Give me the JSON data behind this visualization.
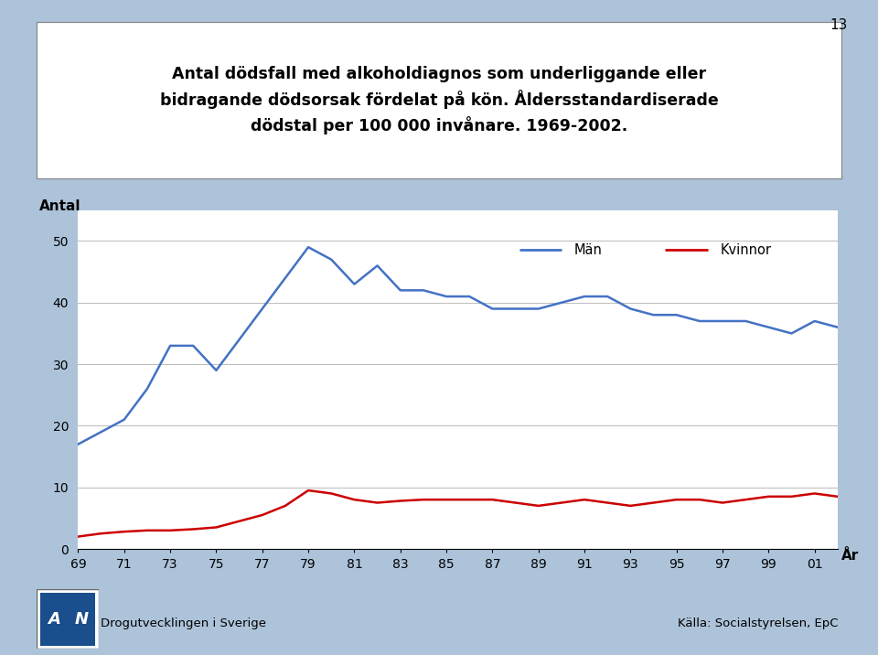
{
  "title_line1": "Antal dödsfall med alkoholdiagnos som underliggande eller",
  "title_line2": "bidragande dödsorsak fördelat på kön. Åldersstandardiserade",
  "title_line3": "dödstal per 100 000 invånare. 1969-2002.",
  "ylabel": "Antal",
  "xlabel": "År",
  "years": [
    1969,
    1970,
    1971,
    1972,
    1973,
    1974,
    1975,
    1976,
    1977,
    1978,
    1979,
    1980,
    1981,
    1982,
    1983,
    1984,
    1985,
    1986,
    1987,
    1988,
    1989,
    1990,
    1991,
    1992,
    1993,
    1994,
    1995,
    1996,
    1997,
    1998,
    1999,
    2000,
    2001,
    2002
  ],
  "man": [
    17,
    19,
    21,
    26,
    33,
    33,
    29,
    34,
    39,
    44,
    49,
    47,
    43,
    46,
    42,
    42,
    41,
    41,
    39,
    39,
    39,
    40,
    41,
    41,
    39,
    38,
    38,
    37,
    37,
    37,
    36,
    35,
    37,
    36
  ],
  "kvinnor": [
    2,
    2.5,
    2.8,
    3,
    3,
    3.2,
    3.5,
    4.5,
    5.5,
    7,
    9.5,
    9,
    8,
    7.5,
    7.8,
    8,
    8,
    8,
    8,
    7.5,
    7,
    7.5,
    8,
    7.5,
    7,
    7.5,
    8,
    8,
    7.5,
    8,
    8.5,
    8.5,
    9,
    8.5
  ],
  "man_color": "#4472C4",
  "kvinnor_color": "#CC0000",
  "background_color": "#ADC3D9",
  "plot_bg_color": "#FFFFFF",
  "title_box_color": "#FFFFFF",
  "ylim": [
    0,
    55
  ],
  "yticks": [
    0,
    10,
    20,
    30,
    40,
    50
  ],
  "xtick_labels": [
    "69",
    "71",
    "73",
    "75",
    "77",
    "79",
    "81",
    "83",
    "85",
    "87",
    "89",
    "91",
    "93",
    "95",
    "97",
    "99",
    "01"
  ],
  "xtick_years": [
    1969,
    1971,
    1973,
    1975,
    1977,
    1979,
    1981,
    1983,
    1985,
    1987,
    1989,
    1991,
    1993,
    1995,
    1997,
    1999,
    2001
  ],
  "legend_man": "Män",
  "legend_kvinnor": "Kvinnor",
  "page_number": "13",
  "footer_left": "Drogutvecklingen i Sverige",
  "footer_right": "Källa: Socialstyrelsen, EpC",
  "logo_color": "#1A4E8C"
}
